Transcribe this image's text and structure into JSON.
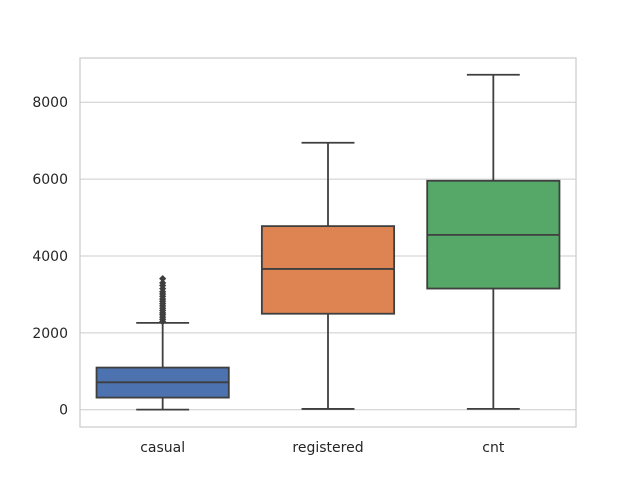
{
  "chart_data": {
    "type": "box",
    "title": "",
    "xlabel": "",
    "ylabel": "",
    "ylim": [
      -450,
      9150
    ],
    "yticks": [
      0,
      2000,
      4000,
      6000,
      8000
    ],
    "grid": "horizontal",
    "categories": [
      "casual",
      "registered",
      "cnt"
    ],
    "boxes": [
      {
        "category": "casual",
        "color": "#4c72b0",
        "whisker_low": 2,
        "q1": 315,
        "median": 713,
        "q3": 1096,
        "whisker_high": 2258,
        "outliers": [
          2290,
          2350,
          2410,
          2470,
          2520,
          2580,
          2640,
          2700,
          2760,
          2820,
          2880,
          2950,
          3010,
          3070,
          3150,
          3230,
          3300,
          3410
        ]
      },
      {
        "category": "registered",
        "color": "#dd8452",
        "whisker_low": 20,
        "q1": 2497,
        "median": 3662,
        "q3": 4776,
        "whisker_high": 6946
      },
      {
        "category": "cnt",
        "color": "#55a868",
        "whisker_low": 22,
        "q1": 3152,
        "median": 4548,
        "q3": 5956,
        "whisker_high": 8714
      }
    ]
  }
}
